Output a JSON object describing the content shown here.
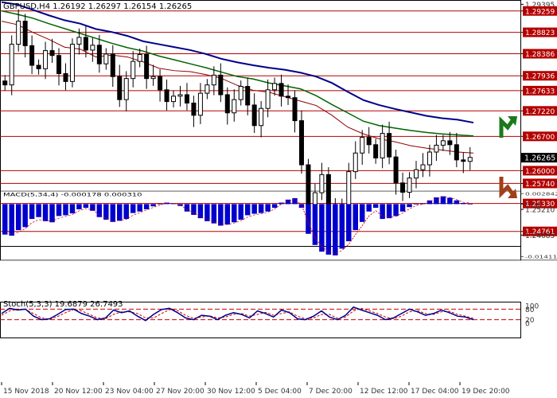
{
  "colors": {
    "level_line": "#b40000",
    "price": "#000000",
    "ma_fast": "#8b0000",
    "ma_mid": "#006400",
    "ma_slow": "#00008b",
    "macd_hist": "#0000cd",
    "macd_signal": "#cc0000",
    "stoch_main": "#00008b",
    "stoch_signal": "#cc0000",
    "arrow_up": "#1a7a1a",
    "arrow_down": "#a0401a",
    "grid_frame": "#000000",
    "current_price_box": "#000000",
    "current_price_text": "#ffffff"
  },
  "chart_data": [
    {
      "type": "candlestick",
      "title": "GBPUSD,H4 1.26192 1.26297 1.26154 1.26265",
      "ylim": [
        1.2448,
        1.2945
      ],
      "x_tick_labels": [
        "15 Nov 2018",
        "20 Nov 12:00",
        "23 Nov 04:00",
        "27 Nov 20:00",
        "30 Nov 12:00",
        "5 Dec 04:00",
        "7 Dec 20:00",
        "12 Dec 12:00",
        "17 Dec 04:00",
        "19 Dec 20:00"
      ],
      "y_tick_labels": [
        "1.29395",
        "1.29259",
        "1.28823",
        "1.28386",
        "1.27936",
        "1.27633",
        "1.27220",
        "1.26700",
        "1.26265",
        "1.26000",
        "1.25740",
        "1.25330",
        "1.25210",
        "1.24761",
        "1.24685"
      ],
      "level_values": [
        1.29259,
        1.28823,
        1.28386,
        1.27936,
        1.27633,
        1.2722,
        1.267,
        1.26,
        1.2574,
        1.2533,
        1.24761
      ],
      "current_price": 1.26265,
      "close_path": [
        1.2775,
        1.2858,
        1.2905,
        1.2855,
        1.2815,
        1.2808,
        1.2845,
        1.2835,
        1.2798,
        1.2782,
        1.2858,
        1.2872,
        1.2846,
        1.2856,
        1.2818,
        1.2838,
        1.2792,
        1.2745,
        1.2788,
        1.2823,
        1.2837,
        1.2788,
        1.2792,
        1.2765,
        1.2741,
        1.2752,
        1.2755,
        1.2738,
        1.2713,
        1.2758,
        1.2775,
        1.2795,
        1.2755,
        1.2718,
        1.2745,
        1.2772,
        1.2734,
        1.2692,
        1.2727,
        1.2765,
        1.2778,
        1.2752,
        1.2749,
        1.2702,
        1.2612,
        1.2531,
        1.2555,
        1.2592,
        1.2523,
        1.2498,
        1.2531,
        1.2598,
        1.2636,
        1.2668,
        1.2653,
        1.2626,
        1.2676,
        1.2628,
        1.2575,
        1.2556,
        1.2585,
        1.2602,
        1.2612,
        1.2638,
        1.2652,
        1.2661,
        1.2653,
        1.2622,
        1.2619,
        1.2627
      ],
      "series": [
        {
          "name": "",
          "kind": "moving_average",
          "values": [
            1.2905,
            1.2898,
            1.2882,
            1.2868,
            1.2852,
            1.2848,
            1.2832,
            1.2836,
            1.2832,
            1.2822,
            1.2809,
            1.2804,
            1.2802,
            1.2796,
            1.2788,
            1.2774,
            1.2764,
            1.276,
            1.2751,
            1.2742,
            1.2733,
            1.2713,
            1.2689,
            1.2675,
            1.2665,
            1.2659,
            1.2651,
            1.2646,
            1.2642,
            1.2638,
            1.2636
          ]
        },
        {
          "name": "",
          "kind": "moving_average",
          "values": [
            1.2926,
            1.2919,
            1.2911,
            1.29,
            1.289,
            1.288,
            1.287,
            1.286,
            1.2851,
            1.2844,
            1.2834,
            1.2826,
            1.2818,
            1.281,
            1.2801,
            1.2792,
            1.2787,
            1.2779,
            1.2773,
            1.2767,
            1.2753,
            1.2735,
            1.2718,
            1.2701,
            1.2692,
            1.2687,
            1.2682,
            1.2678,
            1.2675,
            1.2673,
            1.2671
          ]
        },
        {
          "name": "",
          "kind": "moving_average",
          "values": [
            1.2944,
            1.2939,
            1.2928,
            1.2917,
            1.2907,
            1.29,
            1.2889,
            1.2883,
            1.2875,
            1.2864,
            1.2858,
            1.2852,
            1.2846,
            1.2838,
            1.2828,
            1.2821,
            1.2815,
            1.281,
            1.2806,
            1.28,
            1.2792,
            1.2779,
            1.2761,
            1.2744,
            1.2734,
            1.2726,
            1.2719,
            1.2712,
            1.2707,
            1.2704,
            1.2698
          ]
        }
      ]
    },
    {
      "type": "bar",
      "title": "MACD(5,34,4) -0.000178 0.000310",
      "ylim": [
        -0.0149,
        0.0033
      ],
      "y_tick_labels": [
        "0.002842",
        "0.00",
        "-0.014114"
      ],
      "histogram": [
        -0.0082,
        -0.0085,
        -0.007,
        -0.0062,
        -0.004,
        -0.0035,
        -0.0046,
        -0.0049,
        -0.0032,
        -0.003,
        -0.0025,
        -0.0014,
        -0.001,
        -0.0018,
        -0.0035,
        -0.0042,
        -0.0048,
        -0.0045,
        -0.004,
        -0.0024,
        -0.002,
        -0.0014,
        -0.0006,
        -0.0001,
        0.0004,
        0.0002,
        -0.0005,
        -0.002,
        -0.0029,
        -0.0038,
        -0.0046,
        -0.0052,
        -0.0058,
        -0.0055,
        -0.0049,
        -0.0042,
        -0.003,
        -0.0026,
        -0.0024,
        -0.002,
        -0.001,
        0.0004,
        0.0012,
        0.0016,
        -0.001,
        -0.008,
        -0.011,
        -0.0128,
        -0.0136,
        -0.0138,
        -0.012,
        -0.01,
        -0.007,
        -0.0048,
        -0.002,
        -0.001,
        -0.004,
        -0.0038,
        -0.0032,
        -0.002,
        -0.0008,
        0.0,
        0.0002,
        0.001,
        0.0018,
        0.0021,
        0.0017,
        0.001,
        0.0003,
        0.0
      ],
      "signal": [
        -0.0076,
        -0.008,
        -0.0076,
        -0.0066,
        -0.005,
        -0.0042,
        -0.0044,
        -0.0046,
        -0.0038,
        -0.0033,
        -0.0028,
        -0.0018,
        -0.0012,
        -0.0016,
        -0.0028,
        -0.0038,
        -0.0045,
        -0.0044,
        -0.0041,
        -0.003,
        -0.0023,
        -0.0016,
        -0.0009,
        -0.0003,
        0.0002,
        0.0002,
        -0.0003,
        -0.0014,
        -0.0024,
        -0.0033,
        -0.0041,
        -0.0048,
        -0.0054,
        -0.0055,
        -0.0051,
        -0.0045,
        -0.0035,
        -0.0029,
        -0.0026,
        -0.0022,
        -0.0013,
        0.0,
        0.0008,
        0.0013,
        -0.0002,
        -0.005,
        -0.009,
        -0.0115,
        -0.0128,
        -0.0133,
        -0.0125,
        -0.0108,
        -0.0082,
        -0.0058,
        -0.0032,
        -0.0018,
        -0.0032,
        -0.0035,
        -0.0033,
        -0.0024,
        -0.0013,
        -0.0004,
        0.0,
        0.0007,
        0.0014,
        0.0019,
        0.0018,
        0.0012,
        0.0005,
        0.0003
      ]
    },
    {
      "type": "line",
      "title": "Stoch(5,3,3) 19.6879 26.7493",
      "ylim": [
        0,
        100
      ],
      "y_tick_labels": [
        "100",
        "80",
        "20",
        "0"
      ],
      "level_values": [
        80,
        20
      ],
      "main": [
        55,
        85,
        75,
        80,
        40,
        20,
        25,
        50,
        78,
        80,
        55,
        40,
        20,
        30,
        75,
        60,
        70,
        40,
        15,
        50,
        78,
        85,
        60,
        30,
        20,
        45,
        40,
        20,
        45,
        60,
        50,
        30,
        70,
        55,
        35,
        75,
        60,
        25,
        20,
        40,
        70,
        35,
        20,
        45,
        92,
        75,
        60,
        45,
        20,
        30,
        55,
        80,
        65,
        45,
        55,
        75,
        60,
        40,
        35,
        20
      ],
      "signal": [
        45,
        70,
        80,
        78,
        55,
        30,
        22,
        38,
        60,
        78,
        70,
        50,
        30,
        25,
        50,
        65,
        65,
        55,
        30,
        30,
        55,
        78,
        72,
        45,
        28,
        35,
        42,
        30,
        35,
        50,
        55,
        40,
        50,
        62,
        45,
        55,
        65,
        40,
        25,
        30,
        50,
        50,
        28,
        35,
        70,
        85,
        70,
        55,
        35,
        25,
        40,
        65,
        72,
        55,
        50,
        65,
        68,
        50,
        40,
        27
      ]
    }
  ]
}
